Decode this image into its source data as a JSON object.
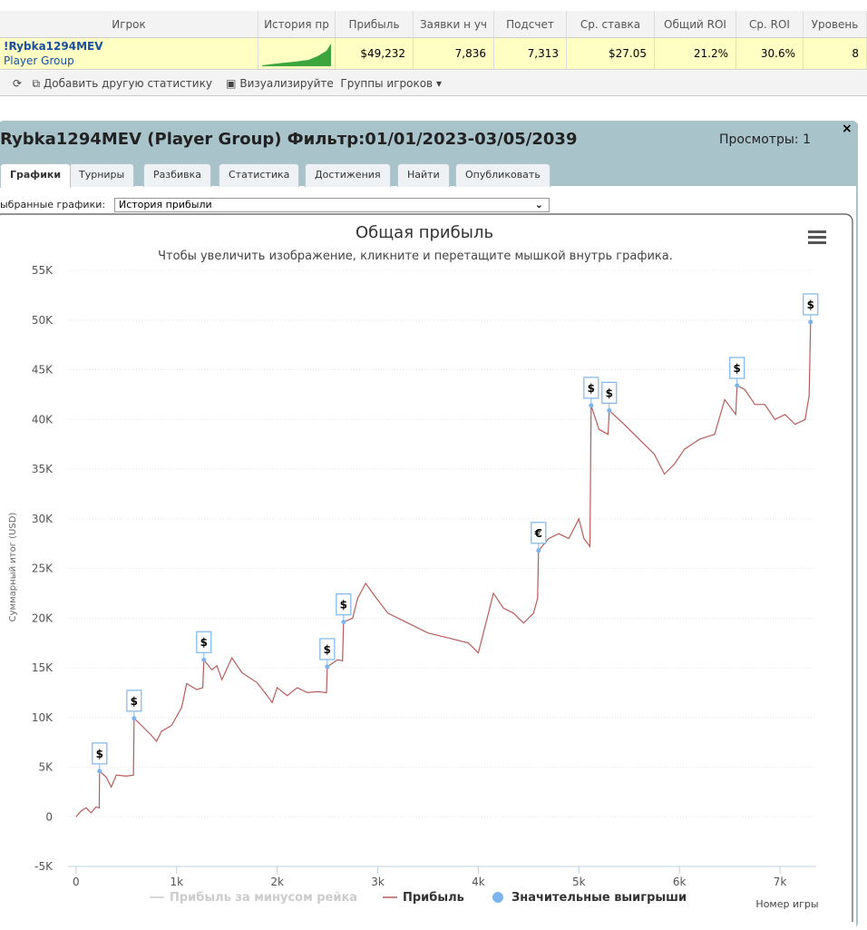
{
  "table": {
    "headers": [
      "Игрок",
      "История пр",
      "Прибыль",
      "Заявки н уч",
      "Подсчет",
      "Ср. ставка",
      "Общий ROI",
      "Ср. ROI",
      "Уровень"
    ],
    "row": {
      "player": "!Rybka1294MEV",
      "group": "Player Group",
      "cells": [
        "$49,232",
        "7,836",
        "7,313",
        "$27.05",
        "21.2%",
        "30.6%",
        "8"
      ]
    }
  },
  "toolbar": {
    "add": "Добавить другую статистику",
    "visualize": "Визуализируйте",
    "groups": "Группы игроков ▾"
  },
  "panel": {
    "title": "Rybka1294MEV (Player Group) Фильтр:01/01/2023-03/05/2039",
    "views": "Просмотры: 1",
    "tabs": [
      "Графики",
      "Турниры",
      "Разбивка",
      "Статистика",
      "Достижения",
      "Найти",
      "Опубликовать"
    ],
    "select_label": "ыбранные графики:",
    "select_value": "История прибыли"
  },
  "chart_data": {
    "type": "line",
    "title": "Общая прибыль",
    "subtitle": "Чтобы увеличить изображение, кликните и перетащите мышкой внутрь графика.",
    "y_label": "Суммарный итог (USD)",
    "x_label": "Номер игры",
    "xlim": [
      -80,
      7360
    ],
    "ylim": [
      -5000,
      55000
    ],
    "xticks": [
      0,
      {
        "value": 1000,
        "label": "1k"
      },
      {
        "value": 2000,
        "label": "2k"
      },
      {
        "value": 3000,
        "label": "3k"
      },
      {
        "value": 4000,
        "label": "4k"
      },
      {
        "value": 5000,
        "label": "5k"
      },
      {
        "value": 6000,
        "label": "6k"
      },
      {
        "value": 7000,
        "label": "7k"
      }
    ],
    "yticks": [
      {
        "value": -5000,
        "label": "-5K"
      },
      0,
      {
        "value": 5000,
        "label": "5K"
      },
      {
        "value": 10000,
        "label": "10K"
      },
      {
        "value": 15000,
        "label": "15K"
      },
      {
        "value": 20000,
        "label": "20K"
      },
      {
        "value": 25000,
        "label": "25K"
      },
      {
        "value": 30000,
        "label": "30K"
      },
      {
        "value": 35000,
        "label": "35K"
      },
      {
        "value": 40000,
        "label": "40K"
      },
      {
        "value": 45000,
        "label": "45K"
      },
      {
        "value": 50000,
        "label": "50K"
      },
      {
        "value": 55000,
        "label": "55K"
      }
    ],
    "grid": true,
    "series": [
      {
        "name": "Прибыль за минусом рейка",
        "color": "#cccccc",
        "visible": false
      },
      {
        "name": "Прибыль",
        "color": "#b85c5c",
        "visible": true,
        "x": [
          0,
          50,
          100,
          150,
          200,
          230,
          234,
          300,
          350,
          400,
          500,
          570,
          577,
          650,
          750,
          800,
          850,
          950,
          1050,
          1100,
          1200,
          1260,
          1271,
          1350,
          1400,
          1450,
          1550,
          1650,
          1800,
          1900,
          1950,
          2000,
          2100,
          2200,
          2300,
          2400,
          2490,
          2498,
          2600,
          2650,
          2660,
          2750,
          2800,
          2880,
          2950,
          3100,
          3300,
          3500,
          3700,
          3900,
          4000,
          4050,
          4150,
          4250,
          4350,
          4450,
          4550,
          4590,
          4599,
          4700,
          4800,
          4900,
          5000,
          5050,
          5110,
          5122,
          5200,
          5290,
          5302,
          5450,
          5600,
          5750,
          5850,
          5950,
          6050,
          6200,
          6350,
          6450,
          6560,
          6573,
          6650,
          6750,
          6850,
          6950,
          7050,
          7150,
          7250,
          7290,
          7304
        ],
        "values": [
          0,
          600,
          900,
          400,
          1000,
          900,
          4600,
          4000,
          3000,
          4200,
          4100,
          4200,
          9900,
          9200,
          8200,
          7600,
          8600,
          9200,
          11000,
          13400,
          12800,
          13000,
          15800,
          14800,
          15200,
          13800,
          16000,
          14500,
          13500,
          12200,
          11500,
          13000,
          12200,
          13000,
          12500,
          12600,
          12500,
          15100,
          15800,
          15700,
          19600,
          20000,
          22000,
          23500,
          22500,
          20500,
          19500,
          18500,
          18000,
          17500,
          16500,
          18500,
          22500,
          21000,
          20500,
          19500,
          20500,
          22000,
          26800,
          28000,
          28500,
          28000,
          30000,
          28000,
          27200,
          41400,
          39000,
          38500,
          40900,
          39500,
          38000,
          36500,
          34500,
          35500,
          37000,
          38000,
          38500,
          42000,
          40500,
          43400,
          43000,
          41500,
          41500,
          40000,
          40500,
          39500,
          40000,
          42400,
          49800
        ]
      },
      {
        "name": "Значительные выигрыши",
        "color": "#7cb5ec",
        "visible": true,
        "x": [
          234,
          577,
          1271,
          2498,
          2660,
          4599,
          5122,
          5302,
          6573,
          7304
        ],
        "values": [
          4600,
          9900,
          15800,
          15100,
          19600,
          26800,
          41400,
          40900,
          43400,
          49800
        ],
        "labels": [
          "$",
          "$",
          "$",
          "$",
          "$",
          "€",
          "$",
          "$",
          "$",
          "$"
        ]
      }
    ]
  }
}
